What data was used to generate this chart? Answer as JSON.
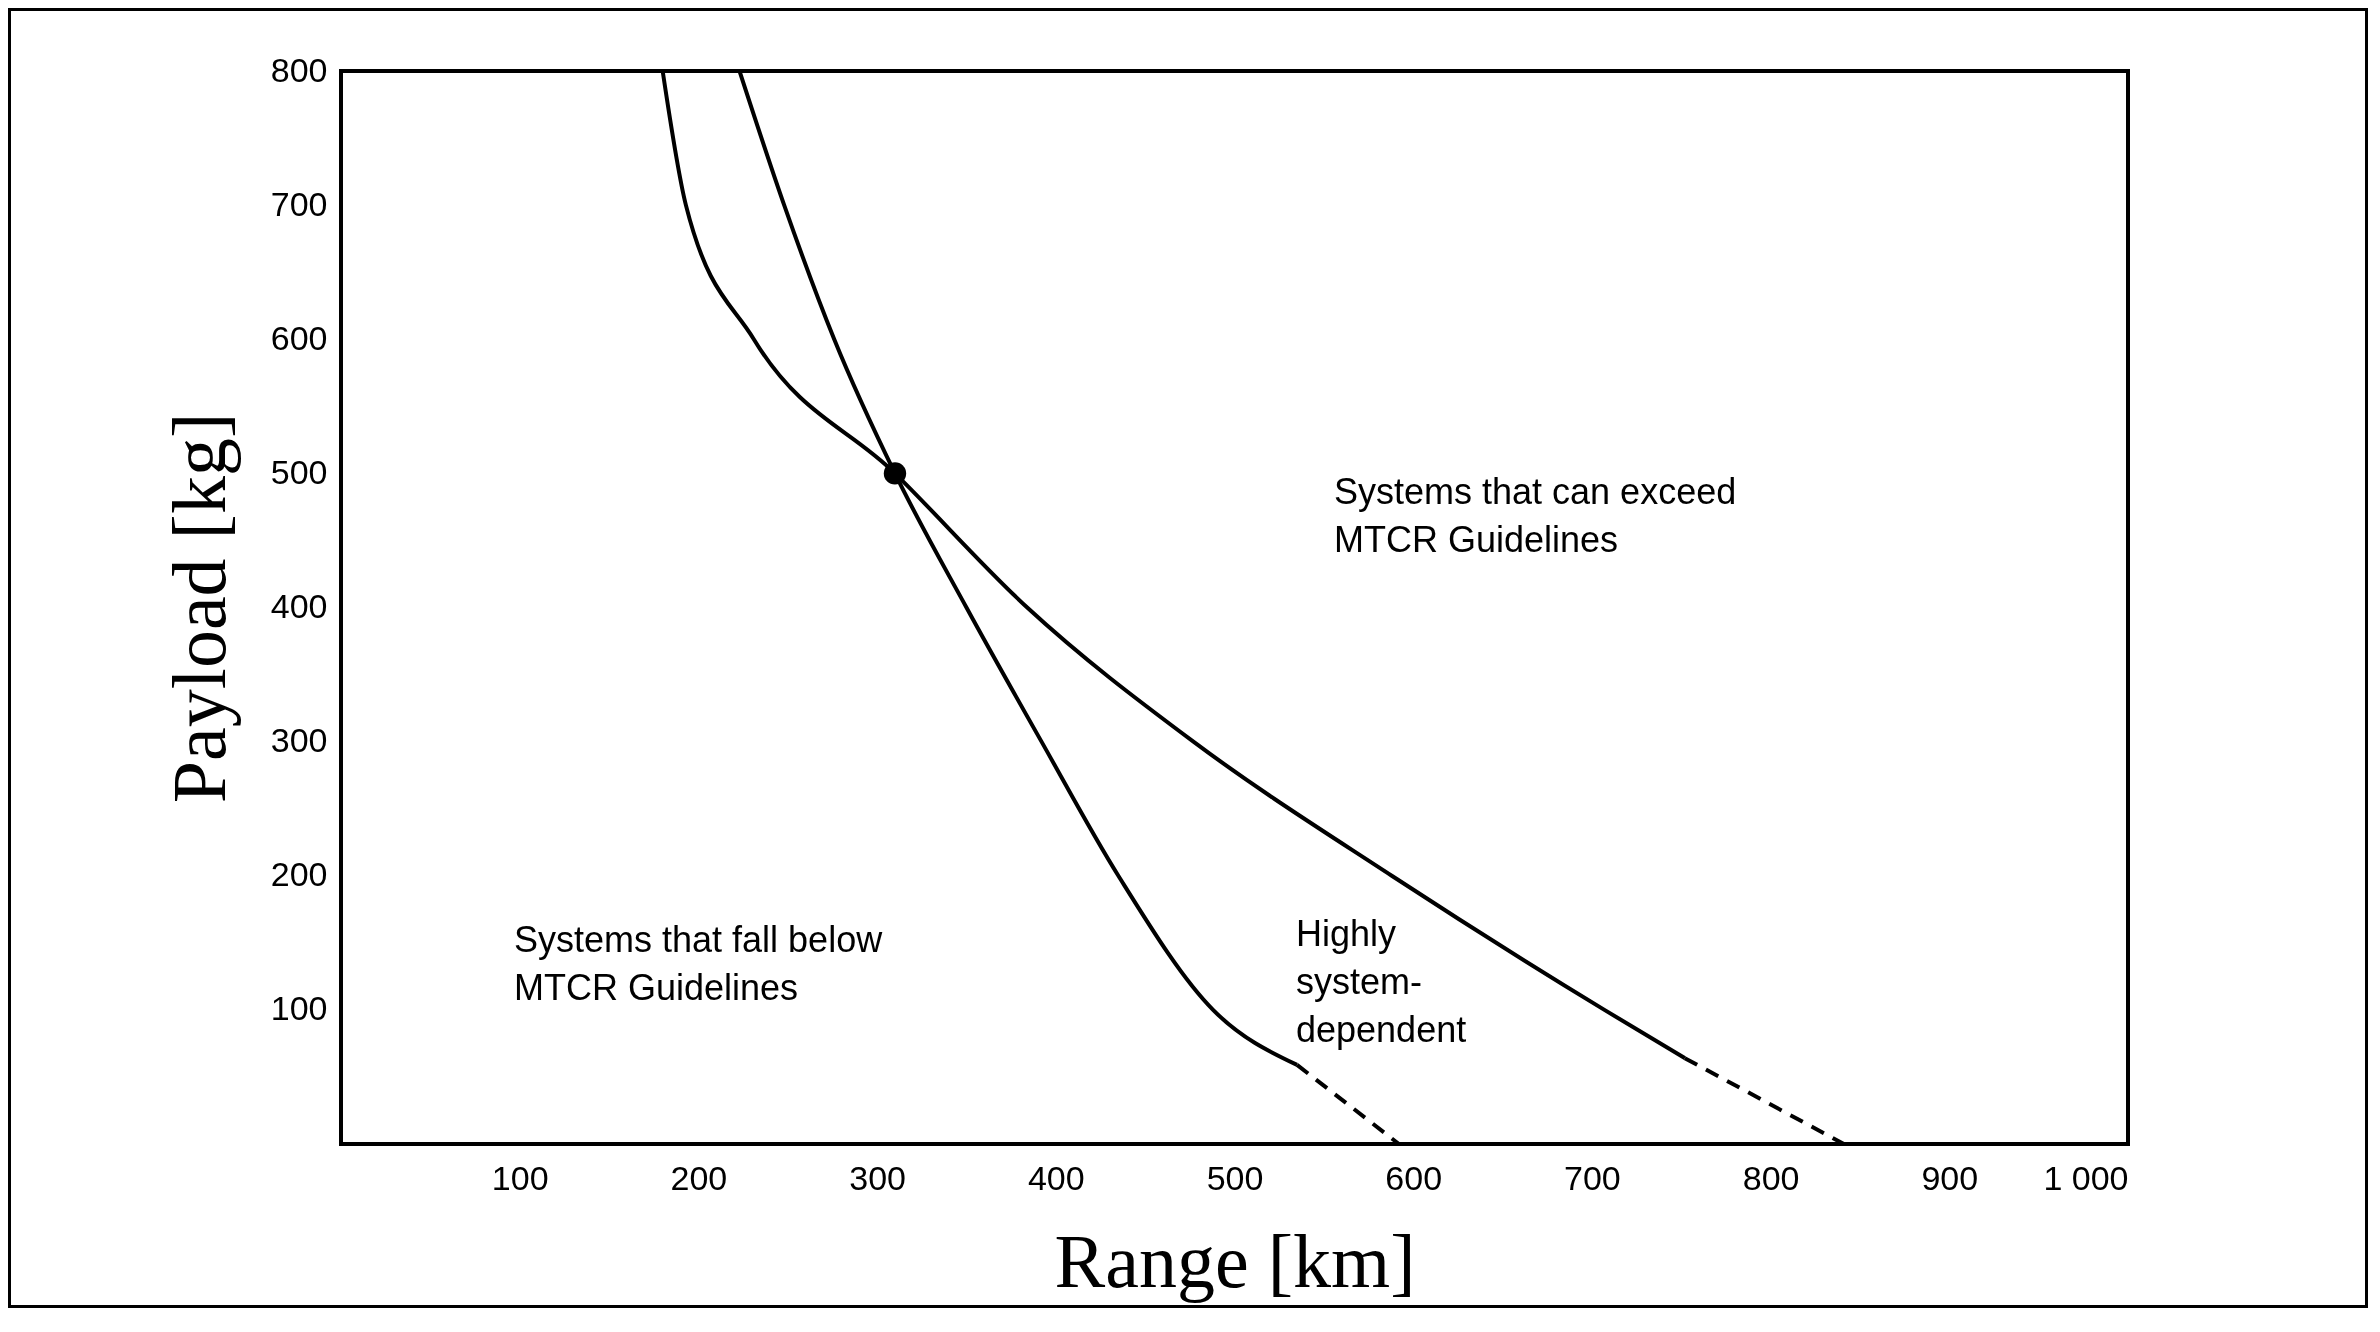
{
  "chart_data": {
    "type": "line",
    "xlabel": "Range [km]",
    "ylabel": "Payload [kg]",
    "xlim": [
      0,
      1000
    ],
    "ylim": [
      0,
      800
    ],
    "xticks": [
      100,
      200,
      300,
      400,
      500,
      600,
      700,
      800,
      900,
      {
        "value": 1000,
        "label": "1 000"
      }
    ],
    "yticks": [
      100,
      200,
      300,
      400,
      500,
      600,
      700,
      800
    ],
    "grid": false,
    "series": [
      {
        "color": "#000000",
        "line_style": "solid",
        "x": [
          223,
          248,
          276,
          310,
          350,
          392,
          435,
          488,
          535
        ],
        "values": [
          800,
          700,
          600,
          500,
          400,
          300,
          200,
          100,
          59
        ]
      },
      {
        "color": "#000000",
        "line_style": "dashed",
        "x": [
          535,
          592
        ],
        "values": [
          59,
          0
        ]
      },
      {
        "color": "#000000",
        "line_style": "solid",
        "x": [
          180,
          193,
          231,
          310,
          384,
          477,
          588,
          707,
          752
        ],
        "values": [
          800,
          700,
          600,
          500,
          400,
          300,
          200,
          100,
          64
        ]
      },
      {
        "color": "#000000",
        "line_style": "dashed",
        "x": [
          752,
          841
        ],
        "values": [
          64,
          0
        ]
      },
      {
        "type": "scatter",
        "marker": "circle",
        "color": "#000000",
        "x": [
          310
        ],
        "values": [
          500
        ]
      }
    ],
    "annotations": [
      "Systems that can exceed\nMTCR Guidelines",
      "Systems that fall below\nMTCR Guidelines",
      "Highly\nsystem-\ndependent"
    ]
  }
}
